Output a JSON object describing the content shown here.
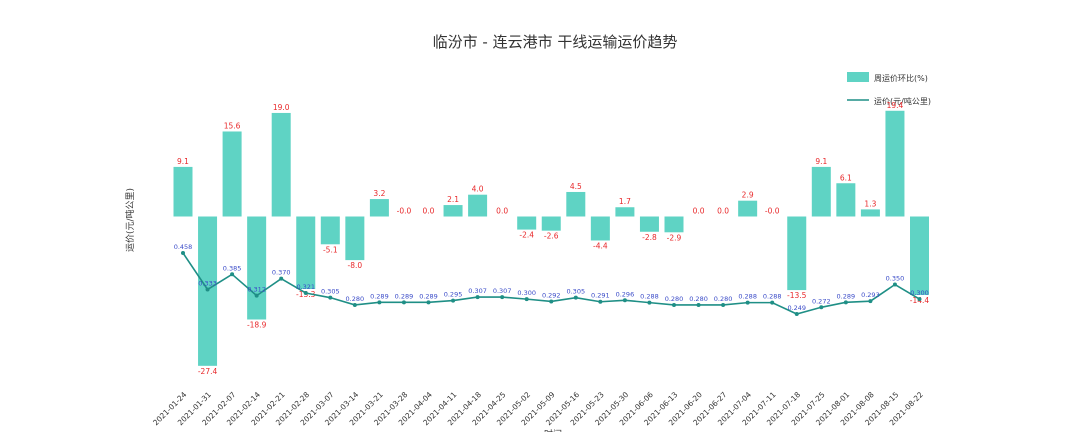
{
  "chart_data": {
    "type": "bar+line",
    "title": "临汾市 - 连云港市  干线运输运价趋势",
    "xlabel": "时间",
    "ylabel": "运价(元/吨公里)",
    "categories": [
      "2021-01-24",
      "2021-01-31",
      "2021-02-07",
      "2021-02-14",
      "2021-02-21",
      "2021-02-28",
      "2021-03-07",
      "2021-03-14",
      "2021-03-21",
      "2021-03-28",
      "2021-04-04",
      "2021-04-11",
      "2021-04-18",
      "2021-04-25",
      "2021-05-02",
      "2021-05-09",
      "2021-05-16",
      "2021-05-23",
      "2021-05-30",
      "2021-06-06",
      "2021-06-13",
      "2021-06-20",
      "2021-06-27",
      "2021-07-04",
      "2021-07-11",
      "2021-07-18",
      "2021-07-25",
      "2021-08-01",
      "2021-08-08",
      "2021-08-15",
      "2021-08-22"
    ],
    "series": [
      {
        "name": "周运价环比(%)",
        "type": "bar",
        "color": "#5fd3c4",
        "labels": [
          "9.1",
          "-27.4",
          "15.6",
          "-18.9",
          "19.0",
          "-13.3",
          "-5.1",
          "-8.0",
          "3.2",
          "-0.0",
          "0.0",
          "2.1",
          "4.0",
          "0.0",
          "-2.4",
          "-2.6",
          "4.5",
          "-4.4",
          "1.7",
          "-2.8",
          "-2.9",
          "0.0",
          "0.0",
          "2.9",
          "-0.0",
          "-13.5",
          "9.1",
          "6.1",
          "1.3",
          "19.4",
          "-14.4"
        ],
        "values": [
          9.1,
          -27.4,
          15.6,
          -18.9,
          19.0,
          -13.3,
          -5.1,
          -8.0,
          3.2,
          -0.0,
          0.0,
          2.1,
          4.0,
          0.0,
          -2.4,
          -2.6,
          4.5,
          -4.4,
          1.7,
          -2.8,
          -2.9,
          0.0,
          0.0,
          2.9,
          -0.0,
          -13.5,
          9.1,
          6.1,
          1.3,
          19.4,
          -14.4
        ]
      },
      {
        "name": "运价(元/吨公里)",
        "type": "line",
        "color": "#1f8f86",
        "labels": [
          "0.458",
          "0.333",
          "0.385",
          "0.312",
          "0.370",
          "0.321",
          "0.305",
          "0.280",
          "0.289",
          "0.289",
          "0.289",
          "0.295",
          "0.307",
          "0.307",
          "0.300",
          "0.292",
          "0.305",
          "0.291",
          "0.296",
          "0.288",
          "0.280",
          "0.280",
          "0.280",
          "0.288",
          "0.288",
          "0.249",
          "0.272",
          "0.289",
          "0.293",
          "0.350",
          "0.300"
        ],
        "values": [
          0.458,
          0.333,
          0.385,
          0.312,
          0.37,
          0.321,
          0.305,
          0.28,
          0.289,
          0.289,
          0.289,
          0.295,
          0.307,
          0.307,
          0.3,
          0.292,
          0.305,
          0.291,
          0.296,
          0.288,
          0.28,
          0.28,
          0.28,
          0.288,
          0.288,
          0.249,
          0.272,
          0.289,
          0.293,
          0.35,
          0.3
        ]
      }
    ],
    "legend": {
      "position": "top-right"
    },
    "grid": false
  }
}
